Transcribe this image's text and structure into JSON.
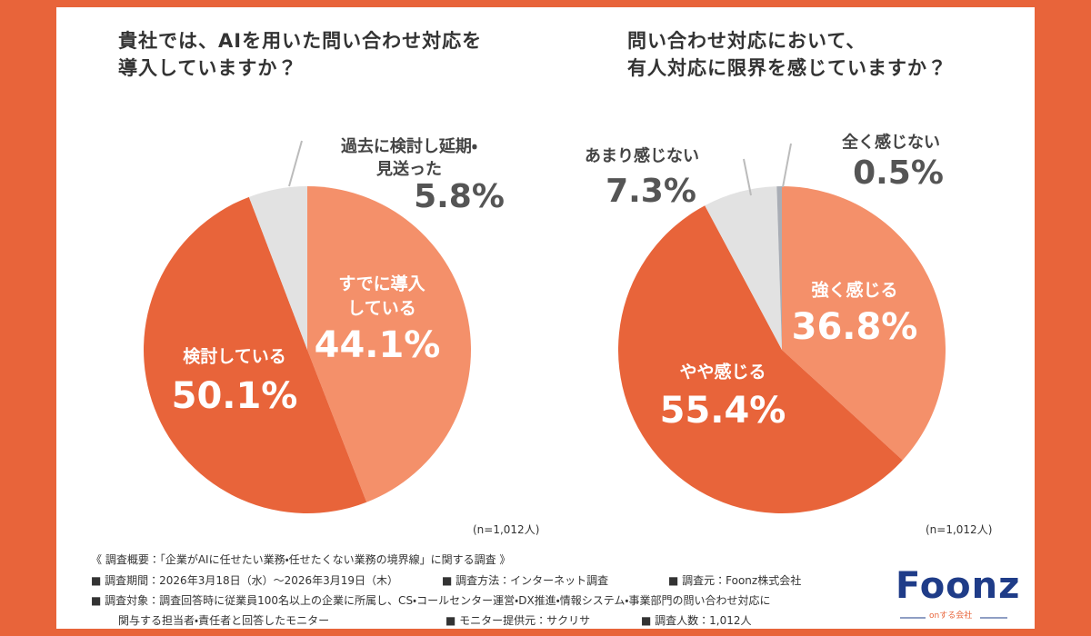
{
  "chart_data": [
    {
      "type": "pie",
      "title": "貴社では、AIを用いた問い合わせ対応を\n導入していますか？",
      "categories": [
        "すでに導入\nしている",
        "検討している",
        "過去に検討し延期・\n見送った"
      ],
      "values": [
        44.1,
        50.1,
        5.8
      ],
      "value_labels": [
        "44.1%",
        "50.1%",
        "5.8%"
      ],
      "colors": [
        "#f4906a",
        "#e8643a",
        "#e2e2e2"
      ],
      "note": "(n=1,012人)"
    },
    {
      "type": "pie",
      "title": "問い合わせ対応において、\n有人対応に限界を感じていますか？",
      "categories": [
        "強く感じる",
        "やや感じる",
        "あまり感じない",
        "全く感じない"
      ],
      "values": [
        36.8,
        55.4,
        7.3,
        0.5
      ],
      "value_labels": [
        "36.8%",
        "55.4%",
        "7.3%",
        "0.5%"
      ],
      "colors": [
        "#f4906a",
        "#e8643a",
        "#e2e2e2",
        "#a9adb5"
      ],
      "note": "(n=1,012人)"
    }
  ],
  "footer": {
    "heading": "《 調査概要：「企業がAIに任せたい業務・任せたくない業務の境界線」に関する調査 》",
    "lines": [
      [
        "■ 調査期間：2026年3月18日（水）～2026年3月19日（木）",
        "■ 調査方法：インターネット調査",
        "■ 調査元：Foonz株式会社"
      ],
      [
        "■ 調査対象：調査回答時に従業員100名以上の企業に所属し、CS・コールセンター運営・DX推進・情報システム・事業部門の問い合わせ対応に"
      ],
      [
        "関与する担当者・責任者と回答したモニター",
        "■ モニター提供元：サクリサ",
        "■ 調査人数：1,012人"
      ]
    ]
  },
  "logo": {
    "name": "Foonz",
    "tagline": "onする会社"
  }
}
